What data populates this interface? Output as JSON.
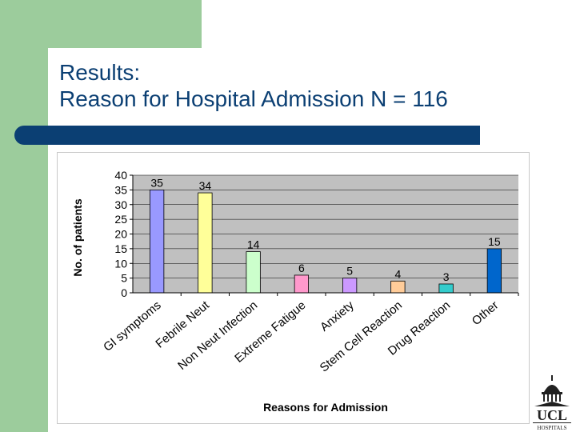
{
  "slide": {
    "title_line1": "Results:",
    "title_line2": "Reason for Hospital Admission N = 116",
    "accent_color": "#0b3f73",
    "side_color": "#9ccc9c"
  },
  "logo": {
    "text_main": "UCL",
    "text_sub": "HOSPITALS"
  },
  "chart_data": {
    "type": "bar",
    "categories": [
      "GI symptoms",
      "Febrile Neut",
      "Non Neut Infection",
      "Extreme Fatigue",
      "Anxiety",
      "Stem Cell Reaction",
      "Drug Reaction",
      "Other"
    ],
    "values": [
      35,
      34,
      14,
      6,
      5,
      4,
      3,
      15
    ],
    "colors": [
      "#9999ff",
      "#ffff99",
      "#ccffcc",
      "#ff99cc",
      "#cc99ff",
      "#ffcc99",
      "#33cccc",
      "#0066cc"
    ],
    "data_labels": [
      "35",
      "34",
      "14",
      "6",
      "5",
      "4",
      "3",
      "15"
    ],
    "xlabel": "Reasons for Admission",
    "ylabel": "No. of patients",
    "ylim": [
      0,
      40
    ],
    "yticks": [
      "0",
      "5",
      "10",
      "15",
      "20",
      "25",
      "30",
      "35",
      "40"
    ],
    "plot_background": "#c0c0c0",
    "grid": true,
    "legend": "none"
  }
}
